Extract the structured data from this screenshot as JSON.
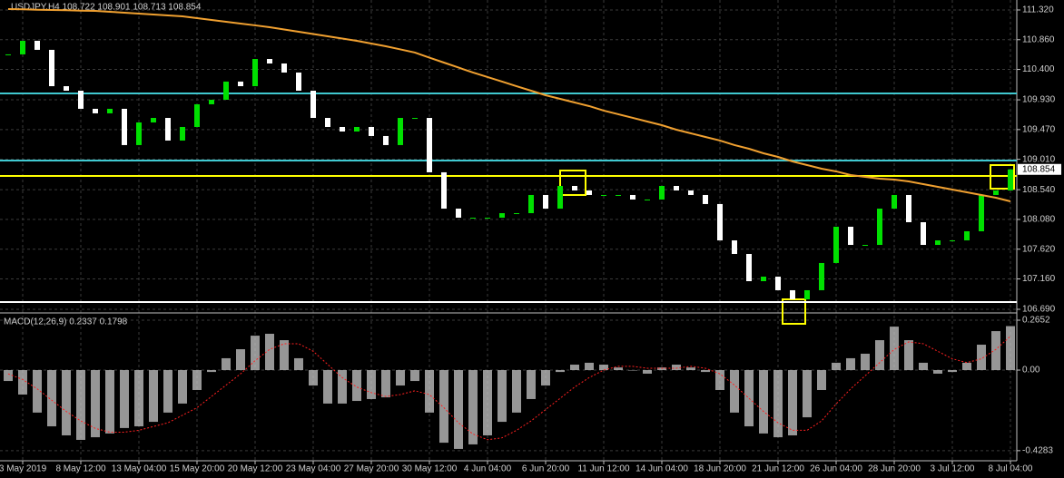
{
  "chart_data": [
    {
      "type": "candle",
      "title": "USDJPY,H4  108.722 108.901 108.713 108.854",
      "categories": [
        null,
        "3 May 2019",
        null,
        null,
        null,
        "8 May 12:00",
        null,
        null,
        null,
        "13 May 04:00",
        null,
        null,
        null,
        "15 May 20:00",
        null,
        null,
        null,
        "20 May 12:00",
        null,
        null,
        null,
        "23 May 04:00",
        null,
        null,
        null,
        "27 May 20:00",
        null,
        null,
        null,
        "30 May 12:00",
        null,
        null,
        null,
        "4 Jun 04:00",
        null,
        null,
        null,
        "6 Jun 20:00",
        null,
        null,
        null,
        "11 Jun 12:00",
        null,
        null,
        null,
        "14 Jun 04:00",
        null,
        null,
        null,
        "18 Jun 20:00",
        null,
        null,
        null,
        "21 Jun 12:00",
        null,
        null,
        null,
        "26 Jun 04:00",
        null,
        null,
        null,
        "28 Jun 20:00",
        null,
        null,
        null,
        "3 Jul 12:00",
        null,
        null,
        null,
        "8 Jul 04:00"
      ],
      "values": [
        110.633,
        110.843,
        110.703,
        110.141,
        110.071,
        109.791,
        109.721,
        109.791,
        109.23,
        109.58,
        109.65,
        109.3,
        109.51,
        109.861,
        109.931,
        110.212,
        110.141,
        110.562,
        110.492,
        110.352,
        110.071,
        109.65,
        109.51,
        109.44,
        109.51,
        109.37,
        109.23,
        109.65,
        109.65,
        108.809,
        108.247,
        108.107,
        108.107,
        108.107,
        108.177,
        108.177,
        108.458,
        108.247,
        108.598,
        108.528,
        108.458,
        108.458,
        108.458,
        108.388,
        108.388,
        108.598,
        108.528,
        108.458,
        108.318,
        107.756,
        107.546,
        107.125,
        107.195,
        106.985,
        106.844,
        106.985,
        107.406,
        107.967,
        107.686,
        107.686,
        108.247,
        108.458,
        108.037,
        107.686,
        107.756,
        107.756,
        107.897,
        108.458,
        108.528,
        108.854
      ],
      "up_color": "#00e000",
      "down_color": "#ffffff",
      "ma": {
        "color": "#f0a030",
        "values": [
          111.334,
          111.33,
          111.324,
          111.32,
          111.316,
          111.31,
          111.306,
          111.292,
          111.278,
          111.264,
          111.25,
          111.236,
          111.222,
          111.194,
          111.166,
          111.138,
          111.11,
          111.082,
          111.053,
          111.018,
          110.983,
          110.948,
          110.913,
          110.878,
          110.843,
          110.801,
          110.759,
          110.71,
          110.661,
          110.583,
          110.506,
          110.429,
          110.352,
          110.282,
          110.212,
          110.141,
          110.071,
          110.001,
          109.945,
          109.889,
          109.833,
          109.763,
          109.707,
          109.651,
          109.594,
          109.538,
          109.468,
          109.412,
          109.356,
          109.3,
          109.23,
          109.173,
          109.103,
          109.047,
          108.977,
          108.921,
          108.865,
          108.823,
          108.767,
          108.739,
          108.71,
          108.696,
          108.668,
          108.626,
          108.584,
          108.542,
          108.5,
          108.458,
          108.416,
          108.36
        ]
      },
      "levels": [
        {
          "value": 110.029,
          "color": "#40c8d0"
        },
        {
          "value": 108.991,
          "color": "#40c8d0"
        },
        {
          "value": 108.752,
          "color": "#ffff00"
        },
        {
          "value": 106.802,
          "color": "#ffffff"
        }
      ],
      "ylim": [
        106.648,
        111.474
      ],
      "yticks": [
        {
          "value": 111.32,
          "label": "111.320"
        },
        {
          "value": 110.86,
          "label": "110.860"
        },
        {
          "value": 110.4,
          "label": "110.400"
        },
        {
          "value": 109.93,
          "label": "109.930"
        },
        {
          "value": 109.47,
          "label": "109.470"
        },
        {
          "value": 109.01,
          "label": "109.010"
        },
        {
          "value": 108.54,
          "label": "108.540"
        },
        {
          "value": 108.08,
          "label": "108.080"
        },
        {
          "value": 107.62,
          "label": "107.620"
        },
        {
          "value": 107.16,
          "label": "107.160"
        },
        {
          "value": 106.69,
          "label": "106.690"
        }
      ],
      "grid": true
    },
    {
      "type": "macd",
      "title": "MACD(12,26,9) 0.2337 0.1798",
      "series": [
        {
          "color": "#c8c8c8",
          "values": [
            -0.058,
            -0.13,
            -0.226,
            -0.299,
            -0.347,
            -0.371,
            -0.357,
            -0.337,
            -0.308,
            -0.299,
            -0.275,
            -0.226,
            -0.178,
            -0.106,
            -0.01,
            0.063,
            0.111,
            0.183,
            0.193,
            0.159,
            0.063,
            -0.082,
            -0.178,
            -0.178,
            -0.164,
            -0.154,
            -0.145,
            -0.082,
            -0.058,
            -0.226,
            -0.386,
            -0.419,
            -0.395,
            -0.347,
            -0.275,
            -0.226,
            -0.154,
            -0.082,
            -0.01,
            0.029,
            0.039,
            0.029,
            0.014,
            0.0,
            -0.019,
            0.014,
            0.029,
            0.014,
            -0.01,
            -0.106,
            -0.226,
            -0.299,
            -0.337,
            -0.357,
            -0.347,
            -0.251,
            -0.106,
            0.039,
            0.063,
            0.087,
            0.159,
            0.231,
            0.159,
            0.039,
            -0.019,
            -0.01,
            0.039,
            0.135,
            0.207,
            0.2337
          ]
        },
        {
          "color": "#ff2020",
          "values": [
            -0.02,
            -0.05,
            -0.1,
            -0.16,
            -0.22,
            -0.27,
            -0.31,
            -0.33,
            -0.33,
            -0.32,
            -0.3,
            -0.28,
            -0.24,
            -0.2,
            -0.14,
            -0.08,
            -0.02,
            0.05,
            0.11,
            0.14,
            0.14,
            0.1,
            0.03,
            -0.04,
            -0.09,
            -0.12,
            -0.14,
            -0.13,
            -0.11,
            -0.13,
            -0.2,
            -0.28,
            -0.34,
            -0.37,
            -0.36,
            -0.32,
            -0.27,
            -0.21,
            -0.15,
            -0.09,
            -0.04,
            0.0,
            0.02,
            0.02,
            0.01,
            0.01,
            0.01,
            0.02,
            0.01,
            -0.02,
            -0.08,
            -0.15,
            -0.22,
            -0.28,
            -0.32,
            -0.32,
            -0.27,
            -0.18,
            -0.1,
            -0.03,
            0.04,
            0.11,
            0.15,
            0.14,
            0.1,
            0.06,
            0.04,
            0.06,
            0.11,
            0.1798
          ]
        }
      ],
      "ylim": [
        -0.482,
        0.299
      ],
      "yticks": [
        0.2652,
        {
          "value": 0,
          "label": "0.00"
        },
        -0.4283
      ]
    }
  ]
}
